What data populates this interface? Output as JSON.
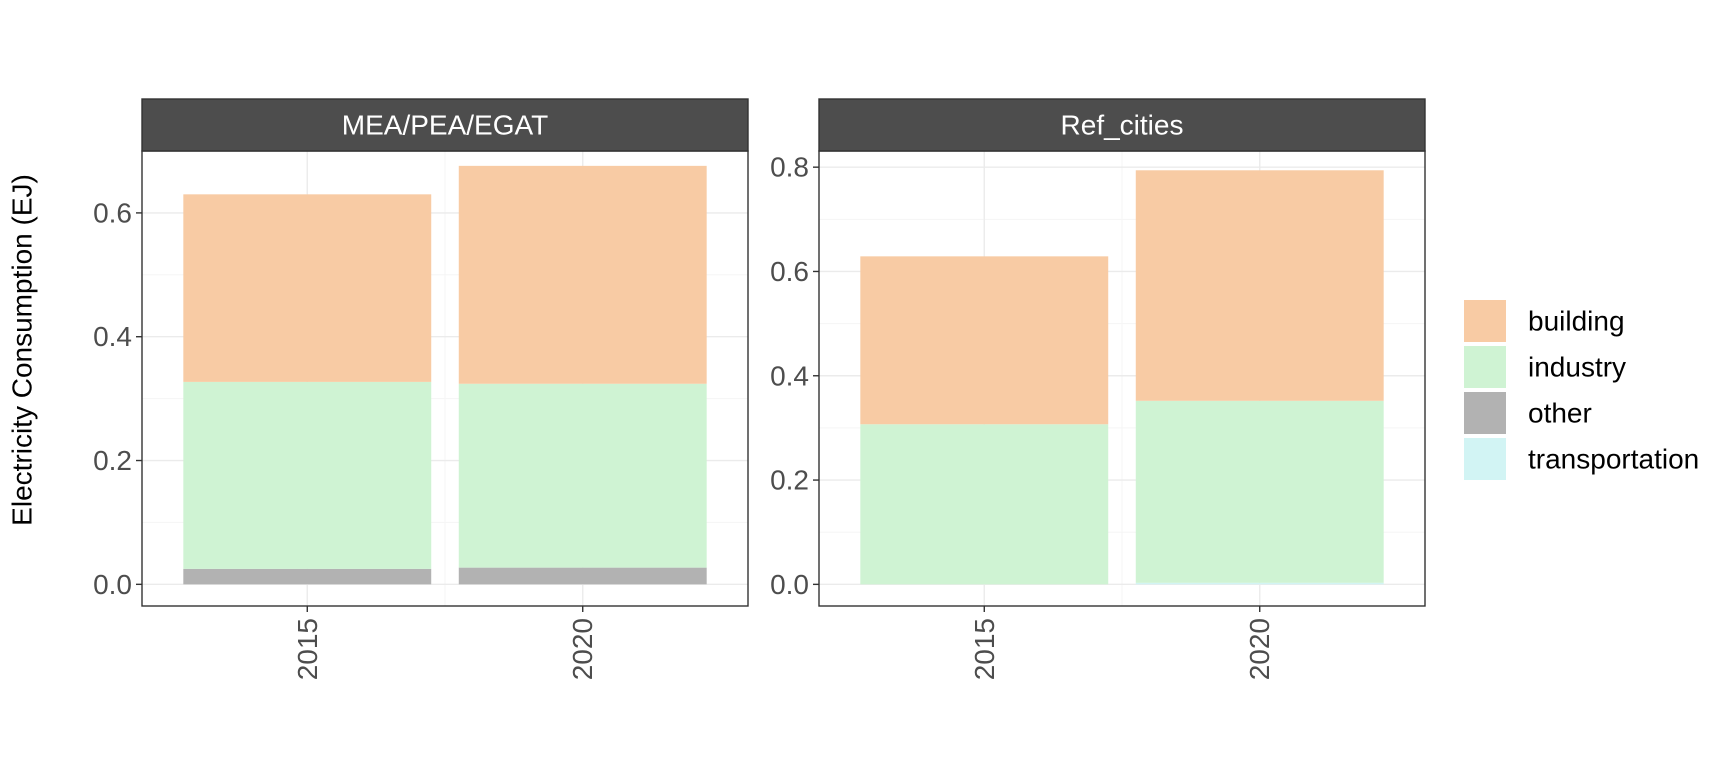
{
  "chart_data": [
    {
      "type": "bar",
      "stacked": true,
      "panel_title": "MEA/PEA/EGAT",
      "categories": [
        "2015",
        "2020"
      ],
      "series": [
        {
          "name": "other",
          "values": [
            0.025,
            0.027
          ]
        },
        {
          "name": "industry",
          "values": [
            0.302,
            0.297
          ]
        },
        {
          "name": "building",
          "values": [
            0.303,
            0.352
          ]
        },
        {
          "name": "transportation",
          "values": [
            0.0,
            0.0
          ]
        }
      ],
      "ylim": [
        0,
        0.7
      ],
      "y_ticks": [
        "0.0",
        "0.2",
        "0.4",
        "0.6"
      ]
    },
    {
      "type": "bar",
      "stacked": true,
      "panel_title": "Ref_cities",
      "categories": [
        "2015",
        "2020"
      ],
      "series": [
        {
          "name": "other",
          "values": [
            0.0,
            0.0
          ]
        },
        {
          "name": "transportation",
          "values": [
            0.0,
            0.003
          ]
        },
        {
          "name": "industry",
          "values": [
            0.307,
            0.349
          ]
        },
        {
          "name": "building",
          "values": [
            0.322,
            0.442
          ]
        }
      ],
      "ylim": [
        0,
        0.83
      ],
      "y_ticks": [
        "0.0",
        "0.2",
        "0.4",
        "0.6",
        "0.8"
      ]
    }
  ],
  "ylabel": "Electricity Consumption (EJ)",
  "legend": {
    "position": "right",
    "items": [
      {
        "name": "building",
        "color": "#F8CBA4"
      },
      {
        "name": "industry",
        "color": "#CFF3D3"
      },
      {
        "name": "other",
        "color": "#B2B2B2"
      },
      {
        "name": "transportation",
        "color": "#D2F4F4"
      }
    ]
  },
  "colors": {
    "building": "#F8CBA4",
    "industry": "#CFF3D3",
    "other": "#B2B2B2",
    "transportation": "#D2F4F4",
    "strip": "#4D4D4D",
    "grid_major": "#EBEBEB",
    "grid_minor": "#F5F5F5"
  }
}
